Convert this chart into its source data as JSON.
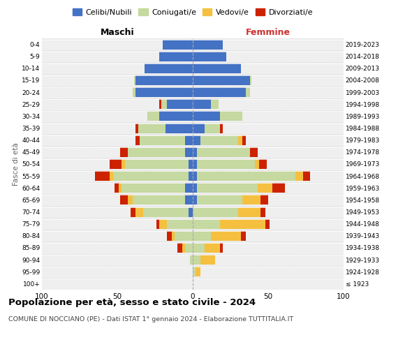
{
  "age_groups": [
    "100+",
    "95-99",
    "90-94",
    "85-89",
    "80-84",
    "75-79",
    "70-74",
    "65-69",
    "60-64",
    "55-59",
    "50-54",
    "45-49",
    "40-44",
    "35-39",
    "30-34",
    "25-29",
    "20-24",
    "15-19",
    "10-14",
    "5-9",
    "0-4"
  ],
  "birth_years": [
    "≤ 1923",
    "1924-1928",
    "1929-1933",
    "1934-1938",
    "1939-1943",
    "1944-1948",
    "1949-1953",
    "1954-1958",
    "1959-1963",
    "1964-1968",
    "1969-1973",
    "1974-1978",
    "1979-1983",
    "1984-1988",
    "1989-1993",
    "1994-1998",
    "1999-2003",
    "2004-2008",
    "2009-2013",
    "2014-2018",
    "2019-2023"
  ],
  "males_celibe": [
    0,
    0,
    0,
    0,
    0,
    0,
    3,
    5,
    5,
    3,
    3,
    5,
    5,
    18,
    22,
    17,
    38,
    38,
    32,
    22,
    20
  ],
  "males_coniugato": [
    0,
    0,
    2,
    5,
    12,
    17,
    30,
    35,
    42,
    50,
    42,
    38,
    30,
    18,
    8,
    4,
    2,
    1,
    0,
    0,
    0
  ],
  "males_vedovo": [
    0,
    0,
    0,
    2,
    2,
    5,
    5,
    3,
    2,
    2,
    2,
    0,
    0,
    0,
    0,
    0,
    0,
    0,
    0,
    0,
    0
  ],
  "males_divorziato": [
    0,
    0,
    0,
    3,
    3,
    2,
    3,
    5,
    3,
    10,
    8,
    5,
    3,
    2,
    0,
    1,
    0,
    0,
    0,
    0,
    0
  ],
  "females_nubile": [
    0,
    0,
    0,
    0,
    0,
    0,
    0,
    3,
    3,
    3,
    3,
    3,
    5,
    8,
    18,
    12,
    35,
    38,
    32,
    22,
    20
  ],
  "females_coniugata": [
    0,
    2,
    5,
    8,
    12,
    18,
    30,
    30,
    40,
    65,
    38,
    35,
    25,
    10,
    15,
    5,
    3,
    1,
    0,
    0,
    0
  ],
  "females_vedova": [
    0,
    3,
    10,
    10,
    20,
    30,
    15,
    12,
    10,
    5,
    3,
    0,
    3,
    0,
    0,
    0,
    0,
    0,
    0,
    0,
    0
  ],
  "females_divorziata": [
    0,
    0,
    0,
    2,
    3,
    3,
    3,
    5,
    8,
    5,
    5,
    5,
    2,
    2,
    0,
    0,
    0,
    0,
    0,
    0,
    0
  ],
  "c_celibe": "#4472c4",
  "c_coniugato": "#c5d9a0",
  "c_vedovo": "#f5c040",
  "c_divorziato": "#cc2200",
  "xlim": 100,
  "title": "Popolazione per età, sesso e stato civile - 2024",
  "subtitle": "COMUNE DI NOCCIANO (PE) - Dati ISTAT 1° gennaio 2024 - Elaborazione TUTTITALIA.IT",
  "ylabel_left": "Fasce di età",
  "label_maschi": "Maschi",
  "label_femmine": "Femmine",
  "legend_labels": [
    "Celibi/Nubili",
    "Coniugati/e",
    "Vedovi/e",
    "Divorziati/e"
  ],
  "bg_color": "#efefef"
}
